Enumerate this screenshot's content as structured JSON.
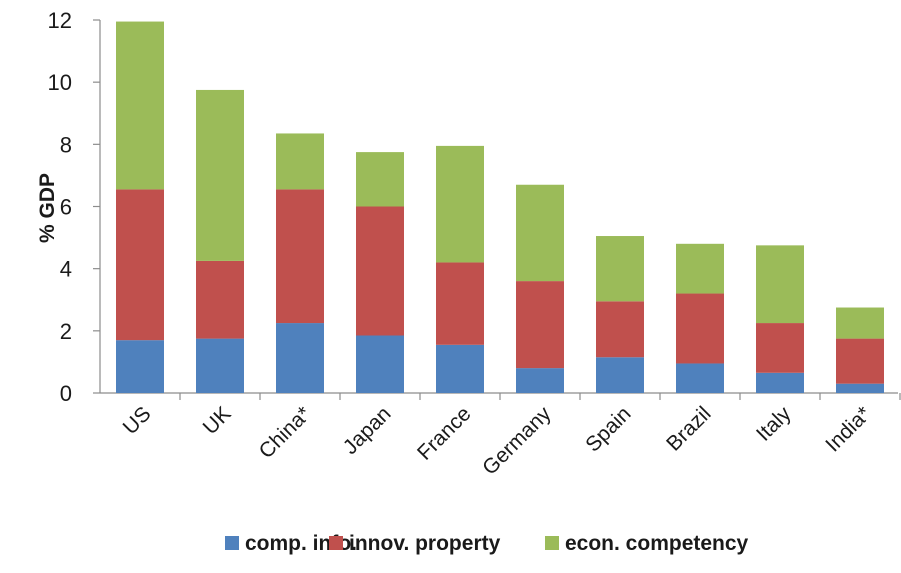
{
  "chart_data": {
    "type": "bar",
    "stacked": true,
    "title": "",
    "xlabel": "",
    "ylabel": "% GDP",
    "ylim": [
      0,
      12
    ],
    "yticks": [
      0,
      2,
      4,
      6,
      8,
      10,
      12
    ],
    "grid": false,
    "legend_position": "bottom",
    "categories": [
      "US",
      "UK",
      "China*",
      "Japan",
      "France",
      "Germany",
      "Spain",
      "Brazil",
      "Italy",
      "India*"
    ],
    "series": [
      {
        "name": "comp. info.",
        "color": "#4f81bd",
        "values": [
          1.7,
          1.75,
          2.25,
          1.85,
          1.55,
          0.8,
          1.15,
          0.95,
          0.65,
          0.3
        ]
      },
      {
        "name": "innov. property",
        "color": "#c0504d",
        "values": [
          4.85,
          2.5,
          4.3,
          4.15,
          2.65,
          2.8,
          1.8,
          2.25,
          1.6,
          1.45
        ]
      },
      {
        "name": "econ. competency",
        "color": "#9bbb59",
        "values": [
          5.4,
          5.5,
          1.8,
          1.75,
          3.75,
          3.1,
          2.1,
          1.6,
          2.5,
          1.0
        ]
      }
    ]
  }
}
